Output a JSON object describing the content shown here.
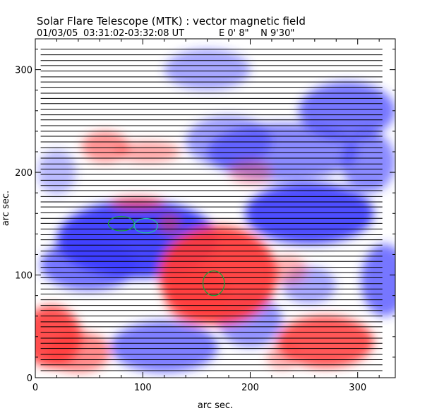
{
  "header": {
    "title": "Solar Flare Telescope (MTK) : vector magnetic field",
    "date": "01/03/05",
    "time_range": "03:31:02-03:32:08 UT",
    "position": "E 0' 8\"    N 9'30\""
  },
  "colors": {
    "positive": "#ff3b3b",
    "negative": "#3c3cff",
    "vector": "#000000",
    "contour_green": "#1aa33a",
    "contour_cyan": "#22b8a8"
  },
  "chart_data": {
    "type": "heatmap",
    "description_layers": [
      "magnetogram",
      "vector field",
      "contours"
    ],
    "xlabel": "arc sec.",
    "ylabel": "arc sec.",
    "xlim": [
      0,
      335
    ],
    "ylim": [
      0,
      330
    ],
    "x_ticks": [
      0,
      100,
      200,
      300
    ],
    "y_ticks": [
      0,
      100,
      200,
      300
    ],
    "x_tick_labels": [
      "0",
      "100",
      "200",
      "300"
    ],
    "y_tick_labels": [
      "0",
      "100",
      "200",
      "300"
    ],
    "positive_patches": [
      {
        "cx": 170,
        "cy": 100,
        "rx": 55,
        "ry": 48,
        "a": 0.95
      },
      {
        "cx": 150,
        "cy": 80,
        "rx": 30,
        "ry": 28,
        "a": 0.6
      },
      {
        "cx": 15,
        "cy": 40,
        "rx": 28,
        "ry": 30,
        "a": 0.9
      },
      {
        "cx": 40,
        "cy": 25,
        "rx": 30,
        "ry": 20,
        "a": 0.6
      },
      {
        "cx": 270,
        "cy": 35,
        "rx": 45,
        "ry": 25,
        "a": 0.85
      },
      {
        "cx": 65,
        "cy": 225,
        "rx": 22,
        "ry": 15,
        "a": 0.55
      },
      {
        "cx": 105,
        "cy": 220,
        "rx": 30,
        "ry": 10,
        "a": 0.45
      },
      {
        "cx": 95,
        "cy": 170,
        "rx": 25,
        "ry": 6,
        "a": 0.7
      },
      {
        "cx": 125,
        "cy": 150,
        "rx": 10,
        "ry": 10,
        "a": 0.5
      },
      {
        "cx": 200,
        "cy": 200,
        "rx": 20,
        "ry": 12,
        "a": 0.35
      },
      {
        "cx": 235,
        "cy": 105,
        "rx": 18,
        "ry": 14,
        "a": 0.4
      },
      {
        "cx": 230,
        "cy": 20,
        "rx": 15,
        "ry": 12,
        "a": 0.4
      }
    ],
    "negative_patches": [
      {
        "cx": 95,
        "cy": 135,
        "rx": 75,
        "ry": 38,
        "a": 0.95
      },
      {
        "cx": 50,
        "cy": 110,
        "rx": 45,
        "ry": 25,
        "a": 0.7
      },
      {
        "cx": 255,
        "cy": 160,
        "rx": 60,
        "ry": 30,
        "a": 0.9
      },
      {
        "cx": 230,
        "cy": 220,
        "rx": 70,
        "ry": 28,
        "a": 0.6
      },
      {
        "cx": 290,
        "cy": 260,
        "rx": 45,
        "ry": 28,
        "a": 0.7
      },
      {
        "cx": 180,
        "cy": 230,
        "rx": 40,
        "ry": 25,
        "a": 0.5
      },
      {
        "cx": 120,
        "cy": 30,
        "rx": 50,
        "ry": 25,
        "a": 0.65
      },
      {
        "cx": 200,
        "cy": 55,
        "rx": 30,
        "ry": 25,
        "a": 0.55
      },
      {
        "cx": 325,
        "cy": 95,
        "rx": 22,
        "ry": 35,
        "a": 0.7
      },
      {
        "cx": 310,
        "cy": 210,
        "rx": 25,
        "ry": 30,
        "a": 0.6
      },
      {
        "cx": 160,
        "cy": 300,
        "rx": 40,
        "ry": 20,
        "a": 0.45
      },
      {
        "cx": 255,
        "cy": 90,
        "rx": 25,
        "ry": 18,
        "a": 0.45
      },
      {
        "cx": 20,
        "cy": 200,
        "rx": 18,
        "ry": 22,
        "a": 0.35
      }
    ],
    "vector_rows": {
      "y_start": 7,
      "y_end": 322,
      "step": 5.3,
      "x_start": 5,
      "x_end": 323
    },
    "contours": [
      {
        "color": "green",
        "cx": 80,
        "cy": 150,
        "rx": 12,
        "ry": 7
      },
      {
        "color": "cyan",
        "cx": 103,
        "cy": 148,
        "rx": 11,
        "ry": 7
      },
      {
        "color": "green",
        "cx": 166,
        "cy": 92,
        "rx": 10,
        "ry": 12
      }
    ]
  }
}
